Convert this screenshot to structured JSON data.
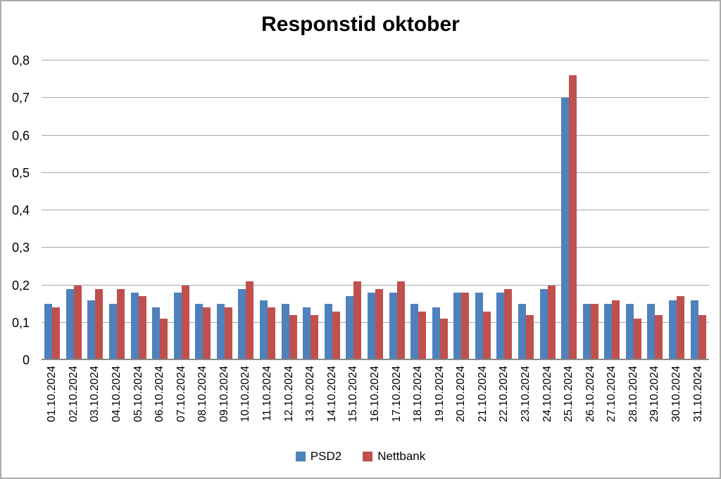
{
  "title": "Responstid oktober",
  "chart_data": {
    "type": "bar",
    "title": "Responstid oktober",
    "categories": [
      "01.10.2024",
      "02.10.2024",
      "03.10.2024",
      "04.10.2024",
      "05.10.2024",
      "06.10.2024",
      "07.10.2024",
      "08.10.2024",
      "09.10.2024",
      "10.10.2024",
      "11.10.2024",
      "12.10.2024",
      "13.10.2024",
      "14.10.2024",
      "15.10.2024",
      "16.10.2024",
      "17.10.2024",
      "18.10.2024",
      "19.10.2024",
      "20.10.2024",
      "21.10.2024",
      "22.10.2024",
      "23.10.2024",
      "24.10.2024",
      "25.10.2024",
      "26.10.2024",
      "27.10.2024",
      "28.10.2024",
      "29.10.2024",
      "30.10.2024",
      "31.10.2024"
    ],
    "series": [
      {
        "name": "PSD2",
        "color": "#4F81BD",
        "values": [
          0.15,
          0.19,
          0.16,
          0.15,
          0.18,
          0.14,
          0.18,
          0.15,
          0.15,
          0.19,
          0.16,
          0.15,
          0.14,
          0.15,
          0.17,
          0.18,
          0.18,
          0.15,
          0.14,
          0.18,
          0.18,
          0.18,
          0.15,
          0.19,
          0.7,
          0.15,
          0.15,
          0.15,
          0.15,
          0.16,
          0.16
        ]
      },
      {
        "name": "Nettbank",
        "color": "#C0504D",
        "values": [
          0.14,
          0.2,
          0.19,
          0.19,
          0.17,
          0.11,
          0.2,
          0.14,
          0.14,
          0.21,
          0.14,
          0.12,
          0.12,
          0.13,
          0.21,
          0.19,
          0.21,
          0.13,
          0.11,
          0.18,
          0.13,
          0.19,
          0.12,
          0.2,
          0.76,
          0.15,
          0.16,
          0.11,
          0.12,
          0.17,
          0.12
        ]
      }
    ],
    "ylim": [
      0,
      0.8
    ],
    "ytick_step": 0.1,
    "ytick_labels": [
      "0",
      "0,1",
      "0,2",
      "0,3",
      "0,4",
      "0,5",
      "0,6",
      "0,7",
      "0,8"
    ],
    "xlabel": "",
    "ylabel": "",
    "grid": true,
    "legend_position": "bottom"
  },
  "legend": {
    "items": [
      {
        "label": "PSD2",
        "color": "#4F81BD"
      },
      {
        "label": "Nettbank",
        "color": "#C0504D"
      }
    ]
  }
}
